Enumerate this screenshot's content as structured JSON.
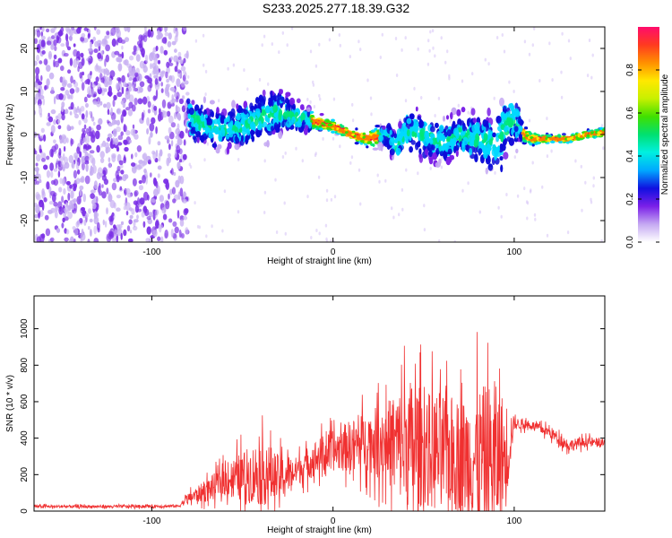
{
  "figure": {
    "title": "S233.2025.277.18.39.G32"
  },
  "chart_data": [
    {
      "type": "heatmap",
      "title": "S233.2025.277.18.39.G32",
      "xlabel": "Height of straight line (km)",
      "ylabel": "Frequency (Hz)",
      "xlim": [
        -165,
        150
      ],
      "ylim": [
        -25,
        25
      ],
      "xticks": [
        -100,
        0,
        100
      ],
      "yticks": [
        -20,
        -10,
        0,
        10,
        20
      ],
      "colorbar": {
        "label": "Normalized spectral amplitude",
        "range": [
          0,
          1
        ],
        "ticks": [
          0.0,
          0.2,
          0.4,
          0.6,
          0.8
        ],
        "colors": [
          "#ffffff",
          "#c5a9f2",
          "#7a1fe8",
          "#0b0bd8",
          "#00d8ff",
          "#00e676",
          "#35e000",
          "#ffe800",
          "#ff7d00",
          "#ff0c3c"
        ]
      },
      "noise_region_end_km": -80,
      "ridge": {
        "x": [
          -80,
          -70,
          -60,
          -50,
          -40,
          -30,
          -20,
          -10,
          0,
          10,
          20,
          30,
          35,
          40,
          50,
          60,
          70,
          80,
          90,
          95,
          100,
          105,
          110,
          120,
          130,
          140,
          150
        ],
        "freq": [
          4,
          2,
          1,
          2,
          4,
          5,
          4,
          3,
          2,
          0,
          -1,
          0,
          -3,
          1,
          0,
          -2,
          0,
          -1,
          -3,
          2,
          4,
          0,
          -1,
          -1,
          -1,
          0,
          0.5
        ],
        "spread": [
          6,
          5,
          5,
          6,
          7,
          6,
          4,
          2,
          1.5,
          1.5,
          2,
          3,
          4,
          5,
          6,
          6,
          6,
          6,
          8,
          10,
          8,
          2,
          1.5,
          1,
          1,
          1,
          1.2
        ]
      }
    },
    {
      "type": "line",
      "xlabel": "Height of straight line (km)",
      "ylabel": "SNR (10 * v/v)",
      "xlim": [
        -165,
        150
      ],
      "ylim": [
        0,
        1180
      ],
      "xticks": [
        -100,
        0,
        100
      ],
      "yticks": [
        0,
        200,
        400,
        600,
        800,
        1000
      ],
      "color": "#f03030",
      "envelope": {
        "x": [
          -165,
          -120,
          -85,
          -80,
          -70,
          -60,
          -50,
          -40,
          -35,
          -30,
          -20,
          -10,
          0,
          10,
          20,
          30,
          35,
          40,
          45,
          50,
          55,
          60,
          65,
          70,
          80,
          85,
          90,
          95,
          100,
          110,
          120,
          130,
          140,
          150
        ],
        "base": [
          25,
          25,
          28,
          70,
          110,
          170,
          190,
          210,
          200,
          180,
          220,
          290,
          330,
          360,
          380,
          380,
          370,
          360,
          350,
          340,
          330,
          320,
          320,
          300,
          290,
          280,
          280,
          300,
          480,
          470,
          430,
          360,
          380,
          370
        ],
        "amp": [
          15,
          15,
          15,
          50,
          110,
          150,
          250,
          330,
          300,
          230,
          140,
          180,
          200,
          260,
          300,
          420,
          500,
          650,
          700,
          550,
          600,
          620,
          580,
          560,
          700,
          760,
          740,
          600,
          60,
          40,
          60,
          60,
          50,
          40
        ]
      }
    }
  ]
}
